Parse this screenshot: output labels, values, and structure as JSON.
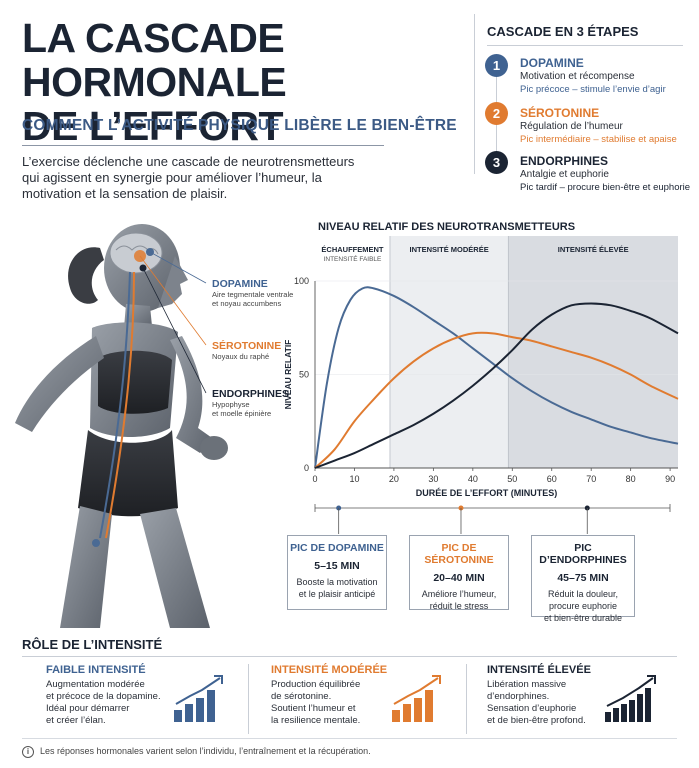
{
  "header": {
    "title_line1": "LA CASCADE HORMONALE",
    "title_line2": "DE L’EFFORT",
    "subtitle": "COMMENT L’ACTIVITÉ PHYSIQUE LIBÈRE LE BIEN-ÊTRE",
    "intro": "L’exercise déclenche une cascade de neurotrensmetteurs qui agissent en synergie pour améliover l’humeur, la motivation et la sensation de plaisir."
  },
  "steps": {
    "title": "CASCADE EN 3 ÉTAPES",
    "items": [
      {
        "num": "1",
        "name": "DOPAMINE",
        "desc": "Motivation et récompense",
        "peak": "Pic précoce – stimule l’envie d’agir",
        "color": "#3f6291"
      },
      {
        "num": "2",
        "name": "SÉROTONINE",
        "desc": "Régulation de l’humeur",
        "peak": "Pic intermédiaire – stabilise et apaise",
        "color": "#e07b30"
      },
      {
        "num": "3",
        "name": "ENDORPHINES",
        "desc": "Antalgie et euphorie",
        "peak": "Pic tardif – procure bien-être et euphorie",
        "color": "#1b2433"
      }
    ]
  },
  "figure_labels": [
    {
      "name": "DOPAMINE",
      "desc1": "Aire tegmentale ventrale",
      "desc2": "et noyau accumbens",
      "color": "#3f6291"
    },
    {
      "name": "SÉROTONINE",
      "desc1": "Noyaux du raphé",
      "desc2": "",
      "color": "#e07b30"
    },
    {
      "name": "ENDORPHINES",
      "desc1": "Hypophyse",
      "desc2": "et moelle épinière",
      "color": "#1b2433"
    }
  ],
  "chart_data": {
    "type": "line",
    "title": "NIVEAU RELATIF DES NEUROTRANSMETTEURS",
    "xlabel": "DURÉE DE L’EFFORT (MINUTES)",
    "ylabel": "NIVEAU RELATIF",
    "xlim": [
      0,
      92
    ],
    "ylim": [
      0,
      100
    ],
    "x_ticks": [
      0,
      10,
      20,
      30,
      40,
      50,
      60,
      70,
      80,
      90
    ],
    "y_ticks": [
      0,
      50,
      100
    ],
    "zones": [
      {
        "label": "ÉCHAUFFEMENT",
        "sublabel": "INTENSITÉ FAIBLE",
        "x0": 0,
        "x1": 19,
        "shade": "#ffffff"
      },
      {
        "label": "INTENSITÉ MODÉRÉE",
        "sublabel": "",
        "x0": 19,
        "x1": 49,
        "shade": "#eceef1"
      },
      {
        "label": "INTENSITÉ ÉLEVÉE",
        "sublabel": "",
        "x0": 49,
        "x1": 92,
        "shade": "#d9dce1"
      }
    ],
    "series": [
      {
        "name": "DOPAMINE",
        "color": "#4a6a94",
        "points": [
          [
            0,
            0
          ],
          [
            3,
            45
          ],
          [
            6,
            75
          ],
          [
            9,
            90
          ],
          [
            12,
            96
          ],
          [
            15,
            96
          ],
          [
            20,
            92
          ],
          [
            25,
            86
          ],
          [
            30,
            79
          ],
          [
            35,
            72
          ],
          [
            40,
            64
          ],
          [
            45,
            56
          ],
          [
            50,
            48
          ],
          [
            55,
            41
          ],
          [
            60,
            35
          ],
          [
            65,
            30
          ],
          [
            70,
            26
          ],
          [
            75,
            22
          ],
          [
            80,
            19
          ],
          [
            85,
            16
          ],
          [
            92,
            13
          ]
        ]
      },
      {
        "name": "SÉROTONINE",
        "color": "#e07b30",
        "points": [
          [
            0,
            0
          ],
          [
            5,
            10
          ],
          [
            10,
            25
          ],
          [
            15,
            37
          ],
          [
            20,
            48
          ],
          [
            25,
            57
          ],
          [
            30,
            64
          ],
          [
            35,
            69
          ],
          [
            40,
            72
          ],
          [
            45,
            72
          ],
          [
            50,
            70
          ],
          [
            55,
            68
          ],
          [
            60,
            65
          ],
          [
            65,
            62
          ],
          [
            70,
            59
          ],
          [
            75,
            55
          ],
          [
            80,
            50
          ],
          [
            85,
            44
          ],
          [
            92,
            37
          ]
        ]
      },
      {
        "name": "ENDORPHINES",
        "color": "#1b2433",
        "points": [
          [
            0,
            0
          ],
          [
            5,
            4
          ],
          [
            10,
            8
          ],
          [
            15,
            13
          ],
          [
            20,
            18
          ],
          [
            25,
            23
          ],
          [
            30,
            29
          ],
          [
            35,
            36
          ],
          [
            40,
            44
          ],
          [
            45,
            53
          ],
          [
            50,
            63
          ],
          [
            55,
            74
          ],
          [
            60,
            82
          ],
          [
            65,
            87
          ],
          [
            70,
            88
          ],
          [
            75,
            87
          ],
          [
            80,
            84
          ],
          [
            85,
            80
          ],
          [
            92,
            72
          ]
        ]
      }
    ],
    "peaks": [
      {
        "title": "PIC DE DOPAMINE",
        "range": "5–15 MIN",
        "desc1": "Booste la motivation",
        "desc2": "et le plaisir anticipé",
        "desc3": "",
        "x": 6,
        "color": "#3f6291"
      },
      {
        "title": "PIC DE SÉROTONINE",
        "range": "20–40 MIN",
        "desc1": "Améliore l’humeur,",
        "desc2": "réduit le stress",
        "desc3": "",
        "x": 37,
        "color": "#e07b30"
      },
      {
        "title": "PIC D’ENDORPHINES",
        "range": "45–75 MIN",
        "desc1": "Réduit la douleur,",
        "desc2": "procure euphorie",
        "desc3": "et bien-être durable",
        "x": 69,
        "color": "#1b2433"
      }
    ]
  },
  "role": {
    "title": "RÔLE DE L’INTENSITÉ",
    "items": [
      {
        "name": "FAIBLE INTENSITÉ",
        "lines": [
          "Augmentation modérée",
          "et précoce de la dopamine.",
          "Idéal pour démarrer",
          "et créer l’élan."
        ],
        "color": "#3f6291"
      },
      {
        "name": "INTENSITÉ MODÉRÉE",
        "lines": [
          "Production équilibrée",
          "de sérotonine.",
          "Soutient l’humeur et",
          "la resilience mentale."
        ],
        "color": "#e07b30"
      },
      {
        "name": "INTENSITÉ ÉLEVÉE",
        "lines": [
          "Libération massive",
          "d’endorphines.",
          "Sensation d’euphorie",
          "et de bien-être profond."
        ],
        "color": "#1b2433"
      }
    ]
  },
  "footer": {
    "icon": "i",
    "text": "Les réponses hormonales varient selon l’individu, l’entraînement et la récupération."
  }
}
